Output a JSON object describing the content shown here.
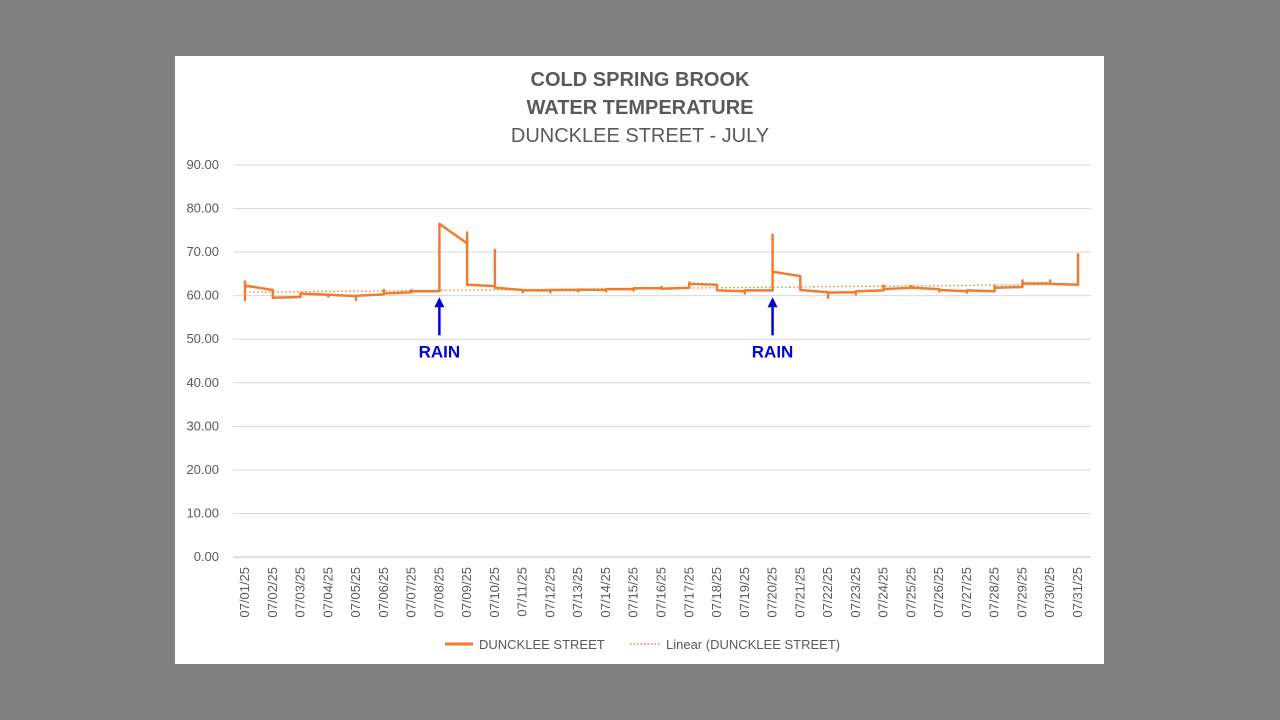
{
  "chart_data": {
    "type": "line",
    "title": "COLD SPRING BROOK",
    "title_line2": "WATER TEMPERATURE",
    "subtitle": "DUNCKLEE STREET  - JULY",
    "ylim": [
      0,
      90
    ],
    "yticks": [
      "0.00",
      "10.00",
      "20.00",
      "30.00",
      "40.00",
      "50.00",
      "60.00",
      "70.00",
      "80.00",
      "90.00"
    ],
    "categories": [
      "07/01/25",
      "07/02/25",
      "07/03/25",
      "07/04/25",
      "07/05/25",
      "07/06/25",
      "07/07/25",
      "07/08/25",
      "07/09/25",
      "07/10/25",
      "07/11/25",
      "07/12/25",
      "07/13/25",
      "07/14/25",
      "07/15/25",
      "07/16/25",
      "07/17/25",
      "07/18/25",
      "07/19/25",
      "07/20/25",
      "07/21/25",
      "07/22/25",
      "07/23/25",
      "07/24/25",
      "07/25/25",
      "07/26/25",
      "07/27/25",
      "07/28/25",
      "07/29/25",
      "07/30/25",
      "07/31/25"
    ],
    "grid": true,
    "legend_position": "bottom",
    "series": [
      {
        "name": "DUNCKLEE STREET",
        "color": "#ed7d31",
        "points": [
          [
            0,
            63.5
          ],
          [
            0,
            59.0
          ],
          [
            0,
            62.3
          ],
          [
            1,
            61.3
          ],
          [
            1,
            59.5
          ],
          [
            2,
            59.7
          ],
          [
            2,
            60.5
          ],
          [
            3,
            60.2
          ],
          [
            3,
            59.8
          ],
          [
            3,
            60.2
          ],
          [
            4,
            59.9
          ],
          [
            4,
            59.0
          ],
          [
            4,
            60.0
          ],
          [
            5,
            60.3
          ],
          [
            5,
            61.3
          ],
          [
            5,
            60.5
          ],
          [
            6,
            60.8
          ],
          [
            6,
            61.3
          ],
          [
            6,
            61.0
          ],
          [
            7,
            61.0
          ],
          [
            7,
            76.5
          ],
          [
            8,
            72.0
          ],
          [
            8,
            74.5
          ],
          [
            8,
            62.5
          ],
          [
            9,
            62.2
          ],
          [
            9,
            70.5
          ],
          [
            9,
            61.8
          ],
          [
            10,
            61.3
          ],
          [
            10,
            60.8
          ],
          [
            10,
            61.2
          ],
          [
            11,
            61.2
          ],
          [
            11,
            60.8
          ],
          [
            11,
            61.3
          ],
          [
            12,
            61.3
          ],
          [
            12,
            61.0
          ],
          [
            12,
            61.4
          ],
          [
            13,
            61.3
          ],
          [
            13,
            61.0
          ],
          [
            13,
            61.5
          ],
          [
            14,
            61.5
          ],
          [
            14,
            61.2
          ],
          [
            14,
            61.7
          ],
          [
            15,
            61.7
          ],
          [
            15,
            62.0
          ],
          [
            15,
            61.6
          ],
          [
            16,
            61.8
          ],
          [
            16,
            63.0
          ],
          [
            16,
            62.7
          ],
          [
            17,
            62.5
          ],
          [
            17,
            61.2
          ],
          [
            18,
            61.0
          ],
          [
            18,
            60.5
          ],
          [
            18,
            61.2
          ],
          [
            19,
            61.2
          ],
          [
            19,
            74.0
          ],
          [
            19,
            65.5
          ],
          [
            20,
            64.5
          ],
          [
            20,
            61.3
          ],
          [
            21,
            60.8
          ],
          [
            21,
            59.5
          ],
          [
            21,
            60.7
          ],
          [
            22,
            60.8
          ],
          [
            22,
            60.3
          ],
          [
            22,
            61.0
          ],
          [
            23,
            61.2
          ],
          [
            23,
            62.3
          ],
          [
            23,
            61.5
          ],
          [
            24,
            61.8
          ],
          [
            24,
            62.2
          ],
          [
            24,
            61.8
          ],
          [
            25,
            61.5
          ],
          [
            25,
            61.0
          ],
          [
            25,
            61.3
          ],
          [
            26,
            61.0
          ],
          [
            26,
            60.7
          ],
          [
            26,
            61.2
          ],
          [
            27,
            61.0
          ],
          [
            27,
            62.3
          ],
          [
            27,
            61.8
          ],
          [
            28,
            62.0
          ],
          [
            28,
            63.5
          ],
          [
            28,
            62.8
          ],
          [
            29,
            62.8
          ],
          [
            29,
            63.5
          ],
          [
            29,
            62.7
          ],
          [
            30,
            62.5
          ],
          [
            30,
            69.5
          ],
          [
            30,
            62.3
          ]
        ]
      }
    ],
    "trendline": {
      "name": "Linear (DUNCKLEE STREET)",
      "color": "#ed7d31",
      "style": "dotted",
      "start": [
        0,
        60.8
      ],
      "end": [
        30,
        62.6
      ]
    },
    "annotations": [
      {
        "text": "RAIN",
        "category": "07/08/25",
        "arrow_y": 61.0,
        "color": "#0000dd"
      },
      {
        "text": "RAIN",
        "category": "07/20/25",
        "arrow_y": 61.0,
        "color": "#0000dd"
      }
    ]
  }
}
